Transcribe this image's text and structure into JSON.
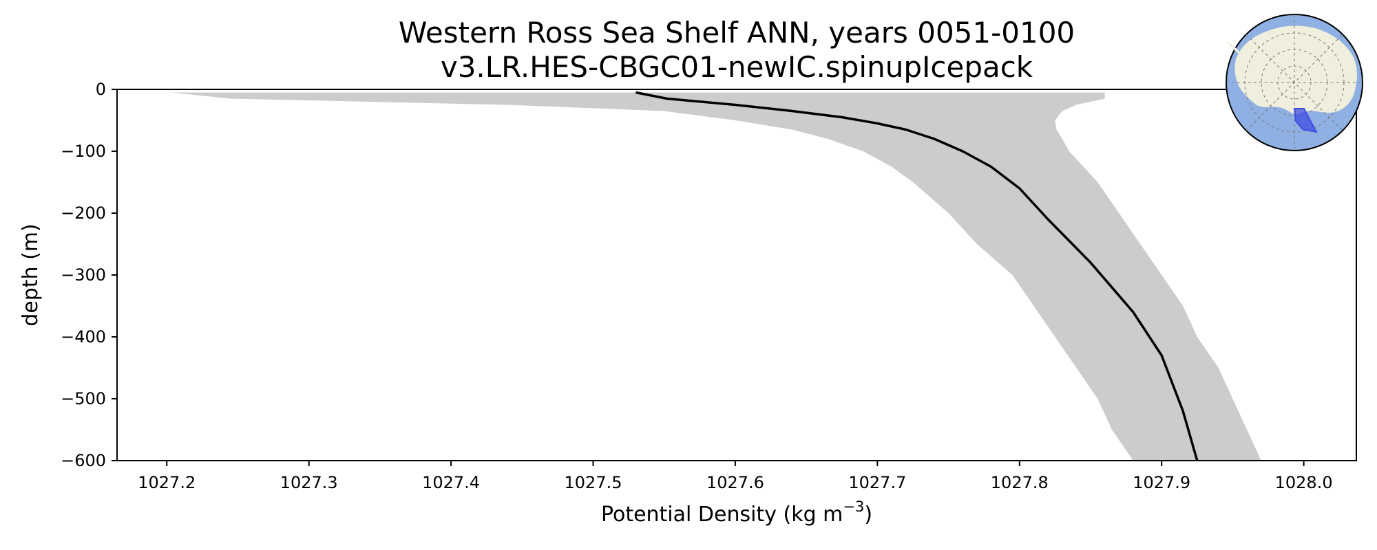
{
  "chart_data": {
    "type": "line",
    "title": "Western Ross Sea Shelf ANN, years 0051-0100",
    "subtitle": "v3.LR.HES-CBGC01-newIC.spinupIcepack",
    "xlabel": "Potential Density (kg m",
    "xlabel_sup": "−3",
    "xlabel_close": ")",
    "ylabel": "depth (m)",
    "xlim": [
      1027.165,
      1028.037
    ],
    "ylim": [
      -600,
      0
    ],
    "x_ticks": [
      1027.2,
      1027.3,
      1027.4,
      1027.5,
      1027.6,
      1027.7,
      1027.8,
      1027.9,
      1028.0
    ],
    "x_tick_labels": [
      "1027.2",
      "1027.3",
      "1027.4",
      "1027.5",
      "1027.6",
      "1027.7",
      "1027.8",
      "1027.9",
      "1028.0"
    ],
    "y_ticks": [
      0,
      -100,
      -200,
      -300,
      -400,
      -500,
      -600
    ],
    "y_tick_labels": [
      "0",
      "−100",
      "−200",
      "−300",
      "−400",
      "−500",
      "−600"
    ],
    "grid": false,
    "series": [
      {
        "kind": "line",
        "color": "#000000",
        "x": [
          1027.53,
          1027.552,
          1027.6,
          1027.64,
          1027.675,
          1027.7,
          1027.72,
          1027.74,
          1027.76,
          1027.78,
          1027.8,
          1027.82,
          1027.85,
          1027.88,
          1027.9,
          1027.915,
          1027.925
        ],
        "y": [
          -5,
          -15,
          -25,
          -35,
          -45,
          -55,
          -65,
          -80,
          -100,
          -125,
          -160,
          -210,
          -280,
          -360,
          -430,
          -520,
          -600
        ]
      },
      {
        "kind": "band",
        "color": "#cccccc",
        "depth": [
          -5,
          -15,
          -25,
          -35,
          -50,
          -65,
          -80,
          -100,
          -125,
          -150,
          -200,
          -250,
          -300,
          -350,
          -400,
          -450,
          -500,
          -550,
          -600
        ],
        "lower": [
          1027.203,
          1027.245,
          1027.44,
          1027.55,
          1027.6,
          1027.64,
          1027.665,
          1027.69,
          1027.71,
          1027.725,
          1027.75,
          1027.77,
          1027.795,
          1027.81,
          1027.825,
          1027.84,
          1027.855,
          1027.865,
          1027.88
        ],
        "upper": [
          1027.86,
          1027.86,
          1027.84,
          1027.83,
          1027.825,
          1027.826,
          1027.83,
          1027.835,
          1027.845,
          1027.855,
          1027.87,
          1027.885,
          1027.9,
          1027.915,
          1027.925,
          1027.94,
          1027.95,
          1027.96,
          1027.97
        ]
      }
    ],
    "inset": {
      "type": "polar-map",
      "placement": "top-right",
      "ocean_color": "#8fb0e3",
      "land_color": "#f0eedc",
      "region_color": "#3f4de0"
    }
  }
}
